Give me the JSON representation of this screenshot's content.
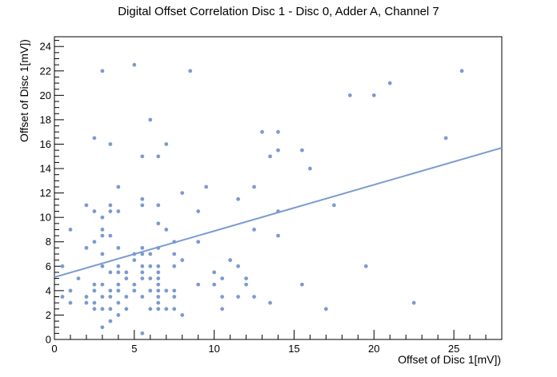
{
  "chart_data": {
    "type": "scatter",
    "title": "Digital Offset Correlation Disc 1 - Disc 0, Adder A, Channel 7",
    "xlabel": "Offset of Disc 1[mV])",
    "ylabel": "Offset of Disc 1[mV])",
    "xlim": [
      0,
      28
    ],
    "ylim": [
      0,
      24.8
    ],
    "xticks": [
      0,
      5,
      10,
      15,
      20,
      25
    ],
    "yticks": [
      0,
      2,
      4,
      6,
      8,
      10,
      12,
      14,
      16,
      18,
      20,
      22,
      24
    ],
    "grid": false,
    "marker_color": "#7b9bd0",
    "fit_color": "#7b9bd0",
    "fit_line": {
      "x": [
        0,
        28
      ],
      "y": [
        5.1,
        15.7
      ]
    },
    "points": [
      [
        0.5,
        3.5
      ],
      [
        0.5,
        6.0
      ],
      [
        1.0,
        3.0
      ],
      [
        1.0,
        4.0
      ],
      [
        1.0,
        9.0
      ],
      [
        1.5,
        5.0
      ],
      [
        2.0,
        3.0
      ],
      [
        2.0,
        3.5
      ],
      [
        2.0,
        7.5
      ],
      [
        2.0,
        11.0
      ],
      [
        2.5,
        2.5
      ],
      [
        2.5,
        3.0
      ],
      [
        2.5,
        4.0
      ],
      [
        2.5,
        4.5
      ],
      [
        2.5,
        8.0
      ],
      [
        2.5,
        10.5
      ],
      [
        2.5,
        16.5
      ],
      [
        3.0,
        1.0
      ],
      [
        3.0,
        2.5
      ],
      [
        3.0,
        3.5
      ],
      [
        3.0,
        4.5
      ],
      [
        3.0,
        6.0
      ],
      [
        3.0,
        7.0
      ],
      [
        3.0,
        8.5
      ],
      [
        3.0,
        9.0
      ],
      [
        3.0,
        10.0
      ],
      [
        3.0,
        22.0
      ],
      [
        3.5,
        1.5
      ],
      [
        3.5,
        2.5
      ],
      [
        3.5,
        3.5
      ],
      [
        3.5,
        4.0
      ],
      [
        3.5,
        5.5
      ],
      [
        3.5,
        8.5
      ],
      [
        3.5,
        10.5
      ],
      [
        3.5,
        11.0
      ],
      [
        3.5,
        16.0
      ],
      [
        4.0,
        2.0
      ],
      [
        4.0,
        3.0
      ],
      [
        4.0,
        4.0
      ],
      [
        4.0,
        4.5
      ],
      [
        4.0,
        5.5
      ],
      [
        4.0,
        6.0
      ],
      [
        4.0,
        7.5
      ],
      [
        4.0,
        10.5
      ],
      [
        4.0,
        12.5
      ],
      [
        4.5,
        2.5
      ],
      [
        4.5,
        3.5
      ],
      [
        4.5,
        5.0
      ],
      [
        4.5,
        5.5
      ],
      [
        5.0,
        4.0
      ],
      [
        5.0,
        4.5
      ],
      [
        5.0,
        6.5
      ],
      [
        5.0,
        7.0
      ],
      [
        5.0,
        22.5
      ],
      [
        5.5,
        0.5
      ],
      [
        5.5,
        3.5
      ],
      [
        5.5,
        5.0
      ],
      [
        5.5,
        5.5
      ],
      [
        5.5,
        6.0
      ],
      [
        5.5,
        7.0
      ],
      [
        5.5,
        7.5
      ],
      [
        5.5,
        11.0
      ],
      [
        5.5,
        11.5
      ],
      [
        5.5,
        15.0
      ],
      [
        6.0,
        2.5
      ],
      [
        6.0,
        4.0
      ],
      [
        6.0,
        5.0
      ],
      [
        6.0,
        6.0
      ],
      [
        6.0,
        7.0
      ],
      [
        6.0,
        18.0
      ],
      [
        6.5,
        2.5
      ],
      [
        6.5,
        3.0
      ],
      [
        6.5,
        3.5
      ],
      [
        6.5,
        4.0
      ],
      [
        6.5,
        4.5
      ],
      [
        6.5,
        5.0
      ],
      [
        6.5,
        5.5
      ],
      [
        6.5,
        6.0
      ],
      [
        6.5,
        7.5
      ],
      [
        6.5,
        9.5
      ],
      [
        6.5,
        11.0
      ],
      [
        6.5,
        15.0
      ],
      [
        7.0,
        2.5
      ],
      [
        7.0,
        4.0
      ],
      [
        7.0,
        9.0
      ],
      [
        7.0,
        16.0
      ],
      [
        7.5,
        2.5
      ],
      [
        7.5,
        3.5
      ],
      [
        7.5,
        4.0
      ],
      [
        7.5,
        6.0
      ],
      [
        7.5,
        7.0
      ],
      [
        7.5,
        8.0
      ],
      [
        8.0,
        2.0
      ],
      [
        8.0,
        6.5
      ],
      [
        8.0,
        12.0
      ],
      [
        8.5,
        22.0
      ],
      [
        9.0,
        4.5
      ],
      [
        9.0,
        8.0
      ],
      [
        9.0,
        10.5
      ],
      [
        9.5,
        12.5
      ],
      [
        10.0,
        4.5
      ],
      [
        10.0,
        5.5
      ],
      [
        10.5,
        2.5
      ],
      [
        10.5,
        3.5
      ],
      [
        10.5,
        5.0
      ],
      [
        11.0,
        6.5
      ],
      [
        11.5,
        3.5
      ],
      [
        11.5,
        6.0
      ],
      [
        11.5,
        11.5
      ],
      [
        12.0,
        4.5
      ],
      [
        12.0,
        5.0
      ],
      [
        12.5,
        3.5
      ],
      [
        12.5,
        9.0
      ],
      [
        12.5,
        12.5
      ],
      [
        13.0,
        17.0
      ],
      [
        13.5,
        3.0
      ],
      [
        13.5,
        15.0
      ],
      [
        14.0,
        8.5
      ],
      [
        14.0,
        10.5
      ],
      [
        14.0,
        15.5
      ],
      [
        14.0,
        17.0
      ],
      [
        15.5,
        4.5
      ],
      [
        15.5,
        15.5
      ],
      [
        16.0,
        14.0
      ],
      [
        17.0,
        2.5
      ],
      [
        17.5,
        11.0
      ],
      [
        18.5,
        20.0
      ],
      [
        19.5,
        6.0
      ],
      [
        20.0,
        20.0
      ],
      [
        21.0,
        21.0
      ],
      [
        22.5,
        3.0
      ],
      [
        24.5,
        16.5
      ],
      [
        25.5,
        22.0
      ]
    ]
  }
}
